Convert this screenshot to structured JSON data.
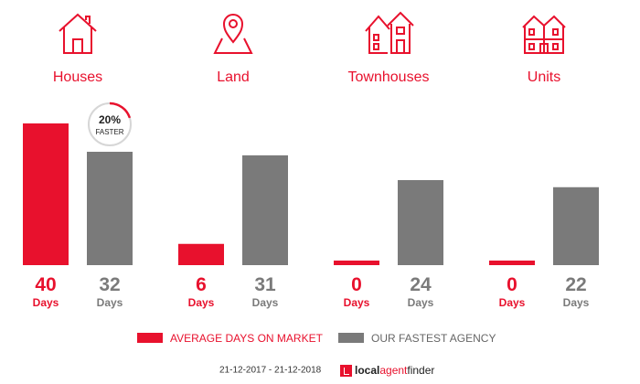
{
  "categories": [
    {
      "label": "Houses",
      "icon": "house-icon"
    },
    {
      "label": "Land",
      "icon": "map-pin-icon"
    },
    {
      "label": "Townhouses",
      "icon": "townhouses-icon"
    },
    {
      "label": "Units",
      "icon": "units-building-icon"
    }
  ],
  "badge": {
    "percent": "20%",
    "text": "FASTER"
  },
  "legend": {
    "market": "AVERAGE DAYS ON MARKET",
    "agency": "OUR FASTEST AGENCY"
  },
  "footer": {
    "date_range": "21-12-2017 - 21-12-2018",
    "logo_bold": "local",
    "logo_mid": "agent",
    "logo_end": "finder"
  },
  "colors": {
    "market": "#e8112d",
    "agency": "#7a7a7a"
  },
  "chart_data": {
    "type": "bar",
    "categories": [
      "Houses",
      "Land",
      "Townhouses",
      "Units"
    ],
    "series": [
      {
        "name": "AVERAGE DAYS ON MARKET",
        "values": [
          40,
          6,
          0,
          0
        ]
      },
      {
        "name": "OUR FASTEST AGENCY",
        "values": [
          32,
          31,
          24,
          22
        ]
      }
    ],
    "unit_label": "Days",
    "ylim": [
      0,
      40
    ],
    "legend_position": "bottom",
    "grid": false
  }
}
